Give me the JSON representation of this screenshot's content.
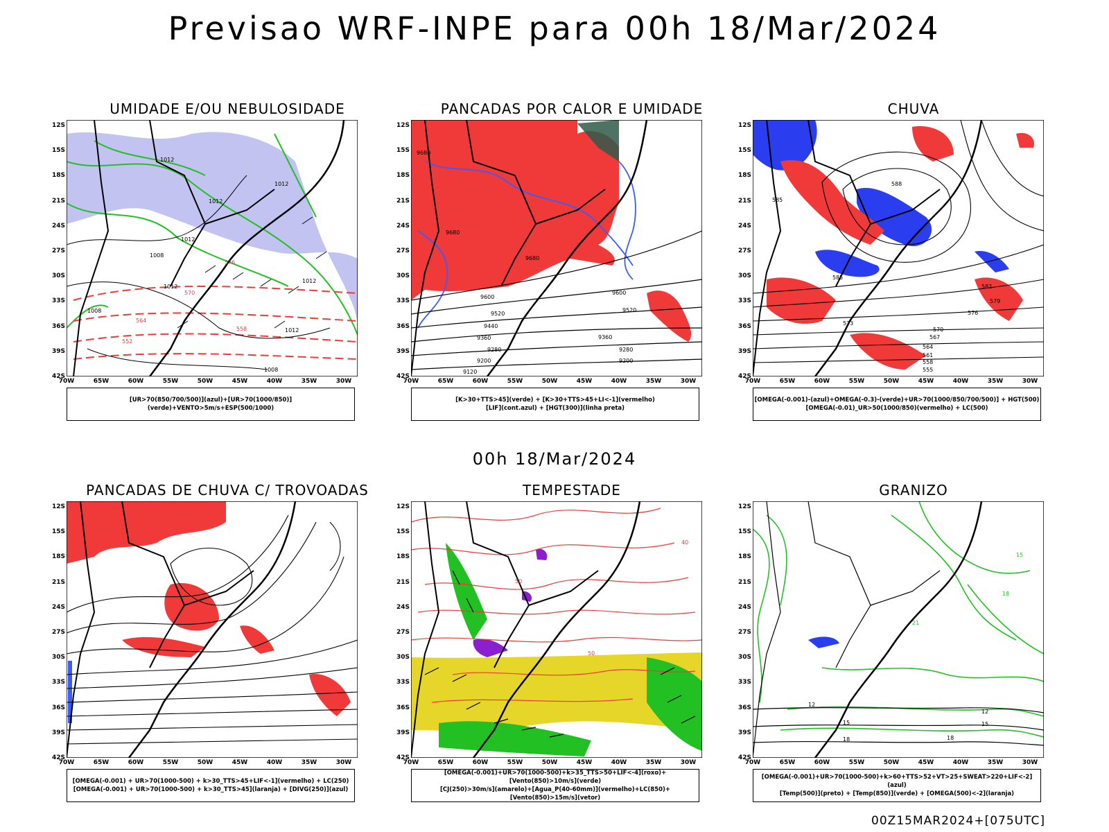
{
  "header": {
    "title": "Previsao WRF-INPE  para 00h 18/Mar/2024"
  },
  "middle": {
    "title": "00h 18/Mar/2024"
  },
  "footer": {
    "stamp": "00Z15MAR2024+[075UTC]"
  },
  "axes": {
    "lat": [
      "12S",
      "15S",
      "18S",
      "21S",
      "24S",
      "27S",
      "30S",
      "33S",
      "36S",
      "39S",
      "42S"
    ],
    "lon": [
      "70W",
      "65W",
      "60W",
      "55W",
      "50W",
      "45W",
      "40W",
      "35W",
      "30W"
    ]
  },
  "colors": {
    "blue": "#3a5bff",
    "green": "#22c022",
    "red": "#f03a3a",
    "yellow": "#e6d62a",
    "purple": "#8a1fd0",
    "lavender": "#b4b4ee"
  },
  "panels": [
    {
      "title": "UMIDADE E/OU NEBULOSIDADE",
      "caption": [
        "[UR>70(850/700/500)](azul)+[UR>70(1000/850)](verde)+VENTO>5m/s+ESP(500/1000)"
      ],
      "contour_labels": [
        "1012",
        "1012",
        "1012",
        "1012",
        "1012",
        "1008",
        "1012",
        "1012",
        "1008",
        "1008",
        "576",
        "570",
        "564",
        "558",
        "552"
      ]
    },
    {
      "title": "PANCADAS POR CALOR E UMIDADE",
      "caption": [
        "[K>30+TTS>45](verde) + [K>30+TTS>45+LI<-1](vermelho)",
        "[LIF](cont.azul) + [HGT(300)](linha preta)"
      ],
      "contour_labels": [
        "9680",
        "9680",
        "9680",
        "9600",
        "9600",
        "9520",
        "9520",
        "9440",
        "9360",
        "9360",
        "9280",
        "9280",
        "9200",
        "9200",
        "9120"
      ]
    },
    {
      "title": "CHUVA",
      "caption": [
        "[OMEGA(-0.001)-(azul)+OMEGA(-0.3)-(verde)+UR>70(1000/850/700/500)] + HGT(500)",
        "[OMEGA(-0.01)_UR>50(1000/850)(vermelho) + LC(500)"
      ],
      "contour_labels": [
        "588",
        "585",
        "585",
        "582",
        "579",
        "576",
        "573",
        "570",
        "567",
        "564",
        "561",
        "558",
        "555"
      ]
    },
    {
      "title": "PANCADAS DE CHUVA C/ TROVOADAS",
      "caption": [
        "[OMEGA(-0.001) + UR>70(1000-500) + k>30_TTS>45+LIF<-1](vermelho) + LC(250)",
        "[OMEGA(-0.001) + UR>70(1000-500) + k>30_TTS>45](laranja) + [DIVG(250)](azul)"
      ],
      "contour_labels": []
    },
    {
      "title": "TEMPESTADE",
      "caption": [
        "[OMEGA(-0.001)+UR>70(1000-500)+k>35_TTS>50+LIF<-4](roxo)+[Vento(850)>10m/s](verde)",
        "[CJ(250)>30m/s](amarelo)+[Agua_P(40-60mm)](vermelho)+LC(850)+[Vento(850)>15m/s](vetor)"
      ],
      "contour_labels": [
        "50",
        "40",
        "50"
      ]
    },
    {
      "title": "GRANIZO",
      "caption": [
        "[OMEGA(-0.001)+UR>70(1000-500)+k>60+TTS>52+VT>25+SWEAT>220+LIF<-2](azul)",
        "[Temp(500)](preto) + [Temp(850)](verde) + [OMEGA(500)<-2](laranja)"
      ],
      "contour_labels": [
        "15",
        "18",
        "21",
        "12",
        "15",
        "18",
        "12",
        "15",
        "18"
      ]
    }
  ]
}
